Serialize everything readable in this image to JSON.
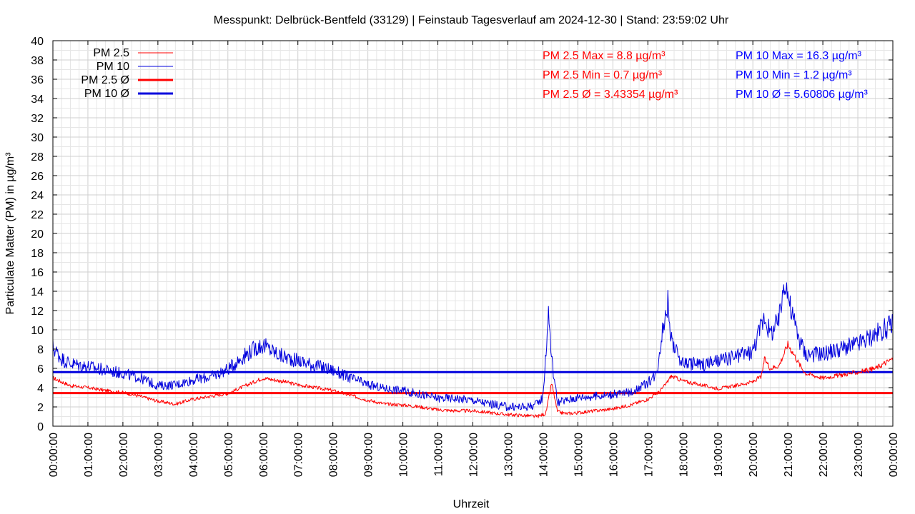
{
  "chart_data": {
    "type": "line",
    "title": "Messpunkt: Delbrück-Bentfeld (33129) | Feinstaub Tagesverlauf am 2024-12-30 | Stand: 23:59:02 Uhr",
    "xlabel": "Uhrzeit",
    "ylabel": "Particulate Matter (PM) in µg/m³",
    "ylim": [
      0,
      40
    ],
    "yticks": [
      0,
      2,
      4,
      6,
      8,
      10,
      12,
      14,
      16,
      18,
      20,
      22,
      24,
      26,
      28,
      30,
      32,
      34,
      36,
      38,
      40
    ],
    "xlim": [
      "00:00:00",
      "24:00:00"
    ],
    "xtick_labels": [
      "00:00:00",
      "01:00:00",
      "02:00:00",
      "03:00:00",
      "04:00:00",
      "05:00:00",
      "06:00:00",
      "07:00:00",
      "08:00:00",
      "09:00:00",
      "10:00:00",
      "11:00:00",
      "12:00:00",
      "13:00:00",
      "14:00:00",
      "15:00:00",
      "16:00:00",
      "17:00:00",
      "18:00:00",
      "19:00:00",
      "20:00:00",
      "21:00:00",
      "22:00:00",
      "23:00:00",
      "00:00:00"
    ],
    "grid": true,
    "legend_position": "top-left",
    "colors": {
      "pm25": "#ff0000",
      "pm10": "#0000dd"
    },
    "series": [
      {
        "name": "PM 2.5",
        "color": "#ff0000",
        "x": [
          "00:00",
          "00:30",
          "01:00",
          "01:30",
          "02:00",
          "02:30",
          "03:00",
          "03:30",
          "04:00",
          "04:30",
          "05:00",
          "05:30",
          "06:00",
          "06:30",
          "07:00",
          "07:30",
          "08:00",
          "08:30",
          "09:00",
          "09:30",
          "10:00",
          "10:30",
          "11:00",
          "11:30",
          "12:00",
          "12:30",
          "13:00",
          "13:30",
          "13:50",
          "14:05",
          "14:15",
          "14:25",
          "14:40",
          "15:00",
          "15:30",
          "16:00",
          "16:30",
          "17:00",
          "17:20",
          "17:30",
          "17:40",
          "18:00",
          "18:30",
          "19:00",
          "19:30",
          "20:00",
          "20:15",
          "20:20",
          "20:30",
          "20:45",
          "21:00",
          "21:10",
          "21:20",
          "21:30",
          "22:00",
          "22:30",
          "23:00",
          "23:30",
          "24:00"
        ],
        "y": [
          5.0,
          4.2,
          4.0,
          3.7,
          3.5,
          3.1,
          2.6,
          2.3,
          2.8,
          3.1,
          3.4,
          4.2,
          5.0,
          4.7,
          4.3,
          4.0,
          3.7,
          3.2,
          2.7,
          2.3,
          2.2,
          2.0,
          1.7,
          1.6,
          1.6,
          1.4,
          1.2,
          1.1,
          1.0,
          1.3,
          4.5,
          1.5,
          1.3,
          1.4,
          1.6,
          1.8,
          2.2,
          2.8,
          3.6,
          4.3,
          5.2,
          4.7,
          4.3,
          3.9,
          4.2,
          4.6,
          5.2,
          7.0,
          6.0,
          6.3,
          8.5,
          7.5,
          6.4,
          5.5,
          5.0,
          5.3,
          5.6,
          6.0,
          7.0
        ]
      },
      {
        "name": "PM 10",
        "color": "#0000dd",
        "x": [
          "00:00",
          "00:15",
          "00:30",
          "01:00",
          "01:30",
          "02:00",
          "02:30",
          "03:00",
          "03:30",
          "04:00",
          "04:30",
          "05:00",
          "05:30",
          "05:50",
          "06:00",
          "06:30",
          "07:00",
          "07:30",
          "08:00",
          "08:30",
          "09:00",
          "09:30",
          "10:00",
          "10:30",
          "11:00",
          "11:30",
          "12:00",
          "12:30",
          "13:00",
          "13:30",
          "13:50",
          "14:00",
          "14:10",
          "14:15",
          "14:25",
          "14:35",
          "15:00",
          "15:30",
          "16:00",
          "16:30",
          "17:00",
          "17:15",
          "17:25",
          "17:35",
          "17:40",
          "17:50",
          "18:00",
          "18:30",
          "19:00",
          "19:30",
          "20:00",
          "20:20",
          "20:30",
          "20:45",
          "20:55",
          "21:05",
          "21:20",
          "21:30",
          "22:00",
          "22:30",
          "23:00",
          "23:30",
          "24:00"
        ],
        "y": [
          8.2,
          7.0,
          6.5,
          6.2,
          5.8,
          5.5,
          5.0,
          4.2,
          4.3,
          4.8,
          5.1,
          5.9,
          7.4,
          8.2,
          8.4,
          7.3,
          6.8,
          6.3,
          5.8,
          5.0,
          4.3,
          3.9,
          3.7,
          3.3,
          2.9,
          2.9,
          2.7,
          2.3,
          2.0,
          2.0,
          2.3,
          3.0,
          12.0,
          7.0,
          2.5,
          2.6,
          3.0,
          3.1,
          3.3,
          3.5,
          4.5,
          5.5,
          10.0,
          13.0,
          9.0,
          7.5,
          6.6,
          6.4,
          6.7,
          7.2,
          7.8,
          11.5,
          9.5,
          11.0,
          15.5,
          12.0,
          9.0,
          7.5,
          7.5,
          8.0,
          8.5,
          9.5,
          10.6
        ]
      }
    ],
    "reference_lines": [
      {
        "name": "PM 2.5 Ø",
        "value": 3.43354,
        "color": "#ff0000"
      },
      {
        "name": "PM 10 Ø",
        "value": 5.60806,
        "color": "#0000dd"
      }
    ],
    "stats": {
      "pm25": [
        "PM 2.5 Max = 8.8 µg/m³",
        "PM 2.5 Min = 0.7 µg/m³",
        "PM 2.5 Ø = 3.43354 µg/m³"
      ],
      "pm10": [
        "PM 10 Max = 16.3 µg/m³",
        "PM 10 Min = 1.2 µg/m³",
        "PM 10 Ø = 5.60806 µg/m³"
      ]
    },
    "legend": [
      "PM 2.5",
      "PM 10",
      "PM 2.5 Ø",
      "PM 10 Ø"
    ]
  }
}
